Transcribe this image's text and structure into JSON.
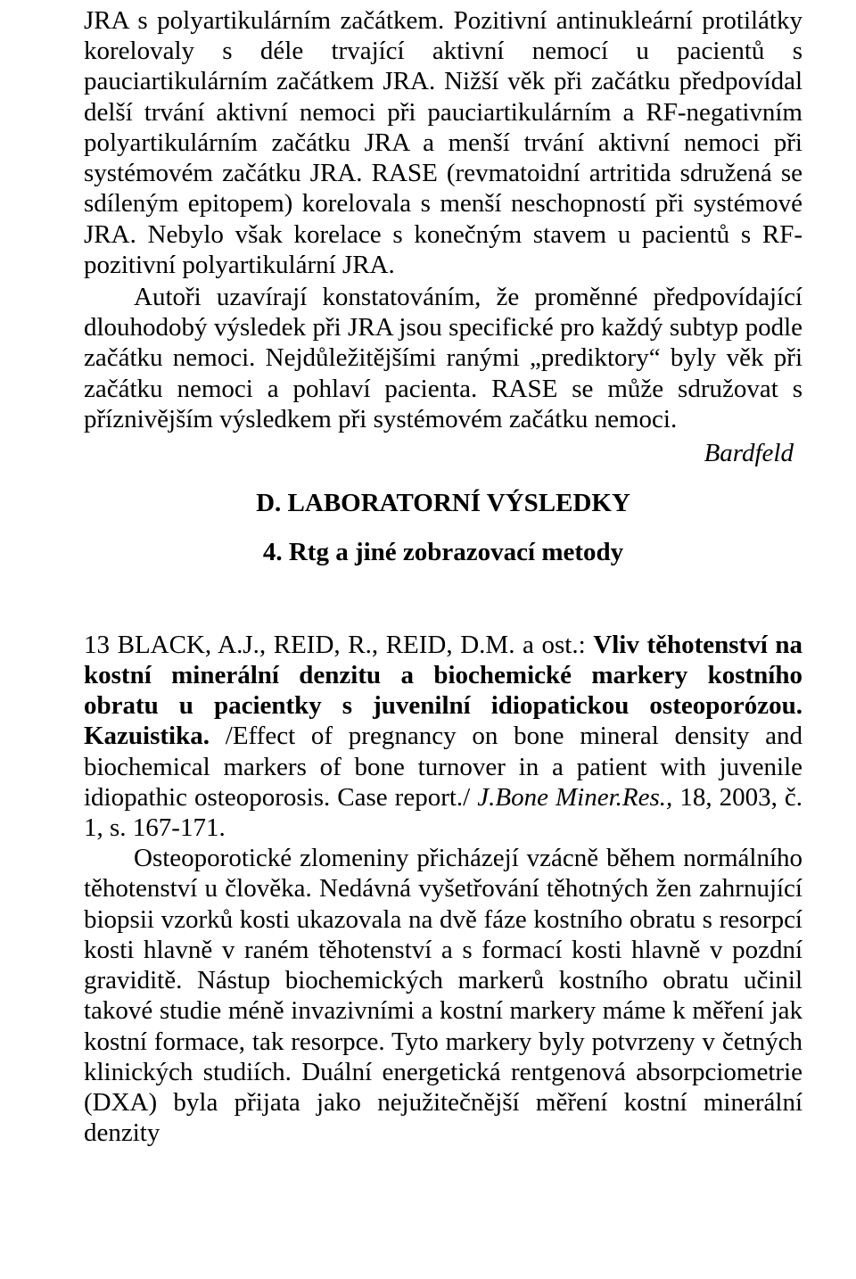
{
  "paragraph1": "JRA s polyartikulárním začátkem. Pozitivní antinukleární protilátky korelovaly s déle trvající aktivní nemocí u pacientů s pauciartikulárním začátkem JRA. Nižší věk při začátku předpovídal delší trvání aktivní nemoci při pauciartikulárním a RF-negativním polyartikulárním začátku JRA a menší trvání aktivní nemoci při systémovém začátku JRA. RASE (revmatoidní artritida sdružená se sdíleným epitopem) korelovala s menší neschopností při systémové JRA. Nebylo však korelace s konečným stavem u pacientů s RF-pozitivní polyartikulární JRA.",
  "paragraph2": "Autoři uzavírají konstatováním, že proměnné předpovídající dlouhodobý výsledek při JRA jsou specifické pro každý subtyp podle začátku nemoci. Nejdůležitějšími ranými „prediktory“ byly věk při začátku nemoci a pohlaví pacienta. RASE se může sdružovat s příznivějším výsledkem při systémovém začátku nemoci.",
  "signature": "Bardfeld",
  "section_heading": "D. LABORATORNÍ VÝSLEDKY",
  "sub_heading": "4. Rtg a jiné zobrazovací metody",
  "reference": {
    "authors": "13 BLACK, A.J., REID, R., REID, D.M. a ost.: ",
    "title": "Vliv těhotenství na kostní minerální denzitu a biochemické markery kostního obratu u pacientky s juvenilní idiopatickou osteoporózou. Kazuistika.",
    "english": " /Effect of pregnancy on bone mineral density and biochemical markers of bone turnover in a patient with juvenile idiopathic osteoporosis. Case report./ ",
    "journal_name": "J.Bone Miner.Res., ",
    "journal_rest": "18, 2003, č. 1, s. 167-171."
  },
  "paragraph3": "Osteoporotické zlomeniny přicházejí vzácně během normálního těhotenství u člověka. Nedávná vyšetřování těhotných žen zahrnující biopsii vzorků kosti ukazovala na dvě fáze kostního obratu s resorpcí kosti hlavně v raném těhotenství a s formací kosti hlavně v pozdní graviditě. Nástup biochemických markerů kostního obratu učinil takové studie méně invazivními a kostní markery máme k měření jak kostní formace, tak resorpce. Tyto markery byly potvrzeny v četných klinických studiích. Duální energetická rentgenová absorpciometrie (DXA) byla přijata jako nejužitečnější měření kostní minerální denzity"
}
